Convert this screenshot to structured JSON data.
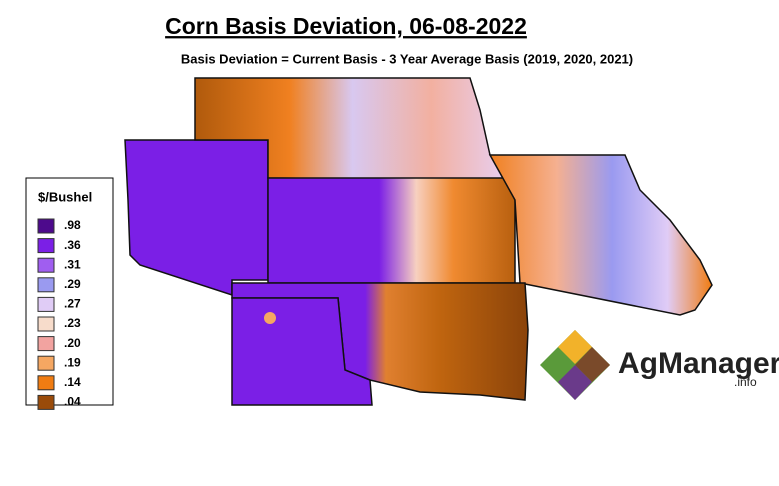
{
  "header": {
    "title": "Corn Basis Deviation, 06-08-2022",
    "subtitle": "Basis Deviation = Current Basis - 3 Year Average Basis (2019, 2020, 2021)"
  },
  "legend": {
    "title": "$/Bushel",
    "items": [
      {
        "label": ".98",
        "color": "#4d0a8c"
      },
      {
        "label": ".36",
        "color": "#7b1fe6"
      },
      {
        "label": ".31",
        "color": "#a05ef0"
      },
      {
        "label": ".29",
        "color": "#9a9af0"
      },
      {
        "label": ".27",
        "color": "#e0ccf6"
      },
      {
        "label": ".23",
        "color": "#f7dccb"
      },
      {
        "label": ".20",
        "color": "#f2a3a0"
      },
      {
        "label": ".19",
        "color": "#f5a762"
      },
      {
        "label": ".14",
        "color": "#f07c12"
      },
      {
        "label": ".04",
        "color": "#9a4b0a"
      }
    ]
  },
  "logo": {
    "name": "AgManager",
    "suffix": ".info"
  }
}
